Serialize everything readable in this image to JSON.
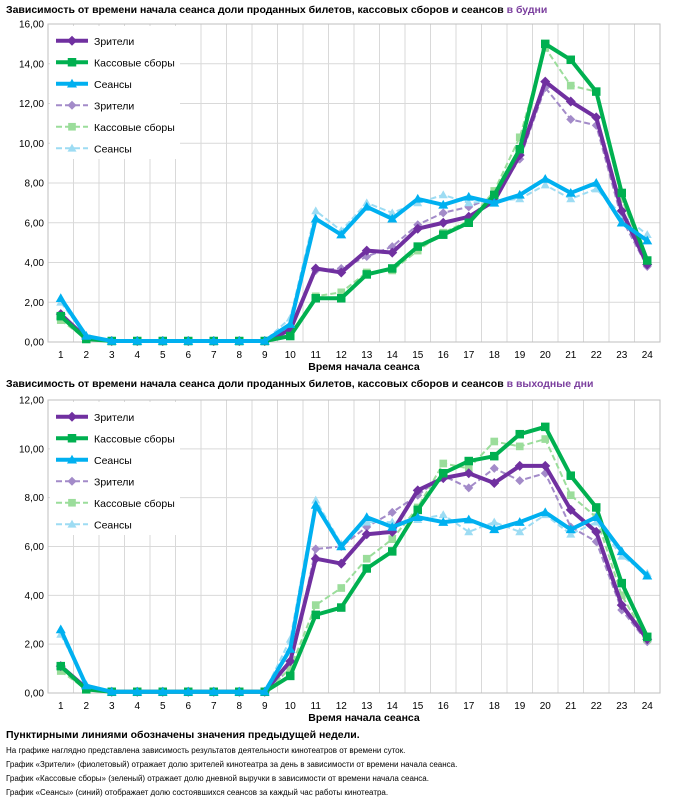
{
  "chart_data": [
    {
      "type": "line",
      "title": "Зависимость от времени начала сеанса доли проданных билетов, кассовых сборов и сеансов",
      "title_highlight": "в будни",
      "xlabel": "Время начала сеанса",
      "ylabel": "",
      "categories": [
        "1",
        "2",
        "3",
        "4",
        "5",
        "6",
        "7",
        "8",
        "9",
        "10",
        "11",
        "12",
        "13",
        "14",
        "15",
        "16",
        "17",
        "18",
        "19",
        "20",
        "21",
        "22",
        "23",
        "24"
      ],
      "ylim": [
        0,
        16
      ],
      "yticks": [
        "0,00",
        "2,00",
        "4,00",
        "6,00",
        "8,00",
        "10,00",
        "12,00",
        "14,00",
        "16,00"
      ],
      "legend_position": "top-left",
      "series": [
        {
          "name": "Зрители",
          "style": "solid",
          "color": "#7030a0",
          "marker": "diamond",
          "values": [
            1.4,
            0.2,
            0.05,
            0.05,
            0.05,
            0.05,
            0.05,
            0.05,
            0.05,
            0.6,
            3.7,
            3.5,
            4.6,
            4.5,
            5.7,
            6.0,
            6.3,
            7.1,
            9.4,
            13.1,
            12.1,
            11.3,
            6.6,
            3.9
          ]
        },
        {
          "name": "Кассовые сборы",
          "style": "solid",
          "color": "#00b050",
          "marker": "square",
          "values": [
            1.3,
            0.15,
            0.05,
            0.05,
            0.05,
            0.05,
            0.05,
            0.05,
            0.05,
            0.3,
            2.2,
            2.2,
            3.4,
            3.7,
            4.8,
            5.4,
            6.0,
            7.4,
            9.7,
            15.0,
            14.2,
            12.6,
            7.5,
            4.1
          ]
        },
        {
          "name": "Сеансы",
          "style": "solid",
          "color": "#00b0f0",
          "marker": "triangle",
          "values": [
            2.2,
            0.3,
            0.05,
            0.05,
            0.05,
            0.05,
            0.05,
            0.05,
            0.05,
            0.9,
            6.2,
            5.4,
            6.8,
            6.2,
            7.2,
            6.9,
            7.3,
            7.0,
            7.4,
            8.2,
            7.5,
            8.0,
            6.0,
            5.1
          ]
        },
        {
          "name": "Зрители",
          "style": "dashed",
          "color": "#a38bc9",
          "marker": "diamond",
          "values": [
            1.2,
            0.2,
            0.05,
            0.05,
            0.05,
            0.05,
            0.05,
            0.05,
            0.05,
            0.7,
            3.6,
            3.7,
            4.3,
            4.8,
            5.9,
            6.5,
            6.8,
            7.3,
            9.2,
            12.8,
            11.2,
            10.9,
            6.2,
            3.8
          ]
        },
        {
          "name": "Кассовые сборы",
          "style": "dashed",
          "color": "#9bdd9b",
          "marker": "square",
          "values": [
            1.1,
            0.15,
            0.05,
            0.05,
            0.05,
            0.05,
            0.05,
            0.05,
            0.05,
            0.4,
            2.3,
            2.5,
            3.5,
            3.6,
            4.6,
            5.5,
            6.1,
            7.6,
            10.3,
            14.8,
            12.9,
            12.6,
            7.2,
            4.0
          ]
        },
        {
          "name": "Сеансы",
          "style": "dashed",
          "color": "#9ddcf3",
          "marker": "triangle",
          "values": [
            2.0,
            0.3,
            0.05,
            0.05,
            0.05,
            0.05,
            0.05,
            0.05,
            0.05,
            1.2,
            6.6,
            5.6,
            7.0,
            6.5,
            7.0,
            7.4,
            7.0,
            7.1,
            7.2,
            7.9,
            7.2,
            7.7,
            6.4,
            5.4
          ]
        }
      ]
    },
    {
      "type": "line",
      "title": "Зависимость от времени начала сеанса доли проданных билетов, кассовых сборов и сеансов",
      "title_highlight": "в выходные дни",
      "xlabel": "Время начала сеанса",
      "ylabel": "",
      "categories": [
        "1",
        "2",
        "3",
        "4",
        "5",
        "6",
        "7",
        "8",
        "9",
        "10",
        "11",
        "12",
        "13",
        "14",
        "15",
        "16",
        "17",
        "18",
        "19",
        "20",
        "21",
        "22",
        "23",
        "24"
      ],
      "ylim": [
        0,
        12
      ],
      "yticks": [
        "0,00",
        "2,00",
        "4,00",
        "6,00",
        "8,00",
        "10,00",
        "12,00"
      ],
      "legend_position": "top-left",
      "series": [
        {
          "name": "Зрители",
          "style": "solid",
          "color": "#7030a0",
          "marker": "diamond",
          "values": [
            1.1,
            0.2,
            0.05,
            0.05,
            0.05,
            0.05,
            0.05,
            0.05,
            0.05,
            1.3,
            5.5,
            5.3,
            6.5,
            6.6,
            8.3,
            8.8,
            9.0,
            8.6,
            9.3,
            9.3,
            7.5,
            6.6,
            3.6,
            2.2
          ]
        },
        {
          "name": "Кассовые сборы",
          "style": "solid",
          "color": "#00b050",
          "marker": "square",
          "values": [
            1.1,
            0.15,
            0.05,
            0.05,
            0.05,
            0.05,
            0.05,
            0.05,
            0.05,
            0.7,
            3.2,
            3.5,
            5.1,
            5.8,
            7.5,
            9.0,
            9.5,
            9.7,
            10.6,
            10.9,
            8.9,
            7.6,
            4.5,
            2.3
          ]
        },
        {
          "name": "Сеансы",
          "style": "solid",
          "color": "#00b0f0",
          "marker": "triangle",
          "values": [
            2.6,
            0.3,
            0.05,
            0.05,
            0.05,
            0.05,
            0.05,
            0.05,
            0.05,
            1.8,
            7.7,
            6.0,
            7.2,
            6.8,
            7.2,
            7.0,
            7.1,
            6.7,
            7.0,
            7.4,
            6.7,
            7.2,
            5.8,
            4.8
          ]
        },
        {
          "name": "Зрители",
          "style": "dashed",
          "color": "#a38bc9",
          "marker": "diamond",
          "values": [
            1.0,
            0.2,
            0.05,
            0.05,
            0.05,
            0.05,
            0.05,
            0.05,
            0.05,
            1.0,
            5.9,
            6.0,
            6.8,
            7.4,
            8.1,
            8.9,
            8.4,
            9.2,
            8.7,
            9.0,
            6.8,
            6.2,
            3.4,
            2.1
          ]
        },
        {
          "name": "Кассовые сборы",
          "style": "dashed",
          "color": "#9bdd9b",
          "marker": "square",
          "values": [
            0.9,
            0.15,
            0.05,
            0.05,
            0.05,
            0.05,
            0.05,
            0.05,
            0.05,
            1.0,
            3.6,
            4.3,
            5.5,
            6.3,
            7.6,
            9.4,
            9.2,
            10.3,
            10.1,
            10.4,
            8.1,
            7.2,
            4.0,
            2.2
          ]
        },
        {
          "name": "Сеансы",
          "style": "dashed",
          "color": "#9ddcf3",
          "marker": "triangle",
          "values": [
            2.4,
            0.35,
            0.05,
            0.05,
            0.05,
            0.05,
            0.05,
            0.05,
            0.05,
            2.2,
            7.9,
            6.1,
            7.0,
            7.0,
            7.1,
            7.3,
            6.6,
            7.0,
            6.6,
            7.3,
            6.5,
            7.0,
            5.6,
            4.9
          ]
        }
      ]
    }
  ],
  "notes": {
    "bold": "Пунктирными линиями обозначены значения предыдущей недели.",
    "lines": [
      "На графике наглядно представлена зависимость результатов деятельности кинотеатров от времени суток.",
      "График «Зрители» (фиолетовый)  отражает долю зрителей кинотеатра за день в зависимости от времени   начала сеанса.",
      "График «Кассовые сборы» (зеленый) отражает долю дневной выручки в зависимости от времени начала сеанса.",
      "График «Сеансы» (синий) отображает долю состоявшихся сеансов  за каждый час работы кинотеатра."
    ]
  }
}
